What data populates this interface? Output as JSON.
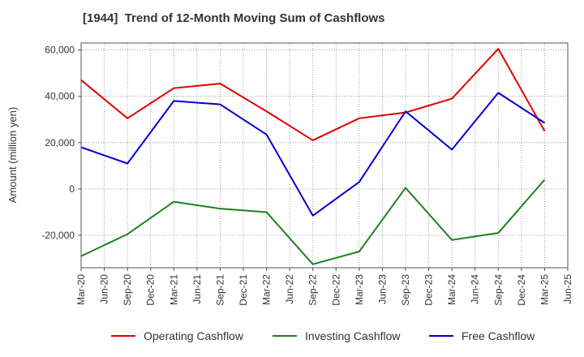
{
  "chart_data": {
    "type": "line",
    "title": "[1944]  Trend of 12-Month Moving Sum of Cashflows",
    "ylabel": "Amount (million yen)",
    "xlabel": "",
    "ylim": [
      -34000,
      63000
    ],
    "y_ticks": [
      60000,
      40000,
      20000,
      0,
      -20000
    ],
    "y_tick_labels": [
      "60,000",
      "40,000",
      "20,000",
      "0",
      "-20,000"
    ],
    "x_ticks": [
      "Mar-20",
      "Jun-20",
      "Sep-20",
      "Dec-20",
      "Mar-21",
      "Jun-21",
      "Sep-21",
      "Dec-21",
      "Mar-22",
      "Jun-22",
      "Sep-22",
      "Dec-22",
      "Mar-23",
      "Jun-23",
      "Sep-23",
      "Dec-23",
      "Mar-24",
      "Jun-24",
      "Sep-24",
      "Dec-24",
      "Mar-25",
      "Jun-25"
    ],
    "x": [
      "Mar-20",
      "Sep-20",
      "Mar-21",
      "Sep-21",
      "Mar-22",
      "Sep-22",
      "Mar-23",
      "Sep-23",
      "Mar-24",
      "Sep-24",
      "Mar-25"
    ],
    "series": [
      {
        "name": "Operating Cashflow",
        "color": "#e00000",
        "values": [
          47000,
          30500,
          43500,
          45500,
          33500,
          21000,
          30500,
          33000,
          39000,
          60500,
          25000
        ]
      },
      {
        "name": "Investing Cashflow",
        "color": "#208020",
        "values": [
          -29000,
          -19500,
          -5500,
          -8500,
          -10000,
          -32500,
          -27000,
          500,
          -22000,
          -19000,
          4000
        ]
      },
      {
        "name": "Free Cashflow",
        "color": "#0000d0",
        "values": [
          18000,
          11000,
          38000,
          36500,
          23500,
          -11500,
          3000,
          33500,
          17000,
          41500,
          28500
        ]
      }
    ],
    "grid": true,
    "legend_position": "bottom"
  }
}
